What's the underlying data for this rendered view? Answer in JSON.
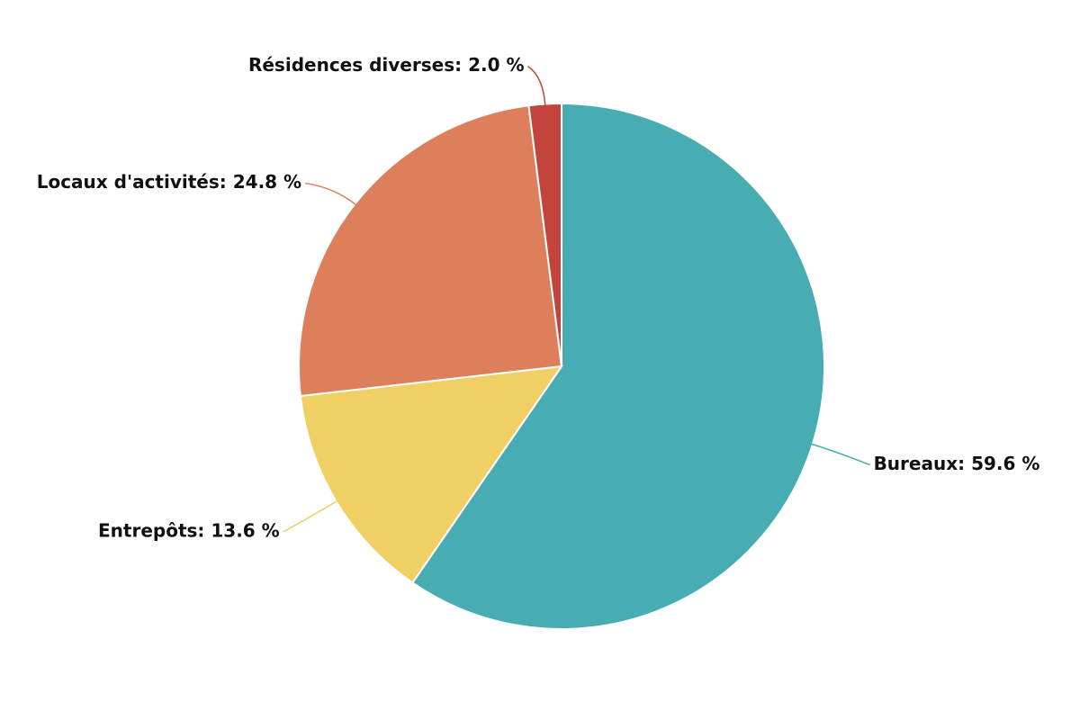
{
  "chart_data": {
    "type": "pie",
    "values": [
      59.6,
      13.6,
      24.8,
      2.0
    ],
    "value_labels": [
      "Bureaux: 59.6 %",
      "Entrepôts: 13.6 %",
      "Locaux d'activités: 24.8 %",
      "Résidences diverses: 2.0 %"
    ],
    "colors": [
      "#48acb3",
      "#f0d065",
      "#dd7f5b",
      "#c5433d"
    ]
  }
}
